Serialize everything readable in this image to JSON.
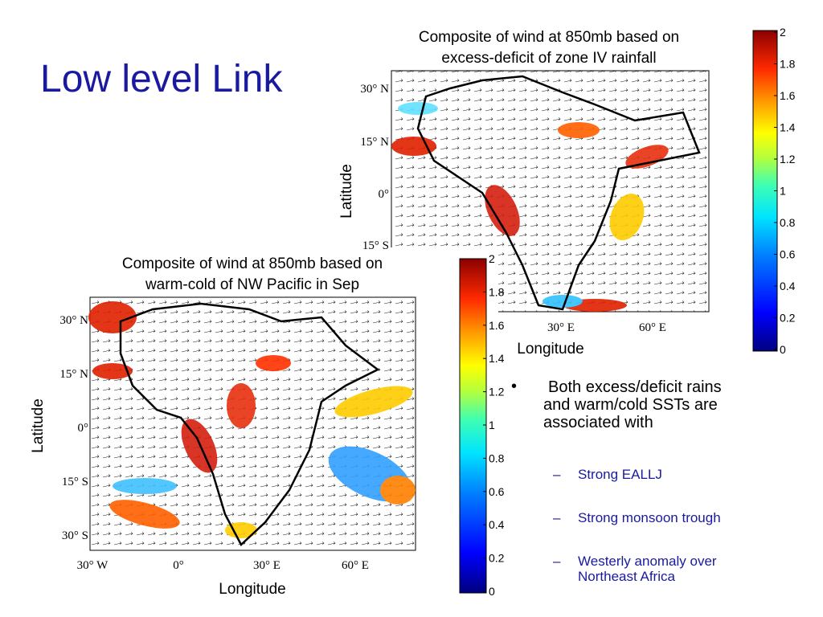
{
  "title": "Low level Link",
  "figures": [
    {
      "title_lines": [
        "Composite of wind at 850mb based on",
        "excess-deficit of zone IV rainfall"
      ],
      "ylabel": "Latitude",
      "xlabel": "Longitude",
      "lat_labels": [
        "30° N",
        "15° N",
        "0°",
        "15° S"
      ],
      "lon_labels": [
        "30° E",
        "60° E"
      ],
      "colorbar": [
        0,
        0.2,
        0.4,
        0.6,
        0.8,
        1,
        1.2,
        1.4,
        1.6,
        1.8,
        2
      ]
    },
    {
      "title_lines": [
        "Composite of wind at 850mb based on",
        "warm-cold of NW Pacific in Sep"
      ],
      "ylabel": "Latitude",
      "xlabel": "Longitude",
      "lat_labels": [
        "30° N",
        "15° N",
        "0°",
        "15° S",
        "30° S"
      ],
      "lon_labels": [
        "30° W",
        "0°",
        "30° E",
        "60° E"
      ],
      "colorbar": [
        0,
        0.2,
        0.4,
        0.6,
        0.8,
        1,
        1.2,
        1.4,
        1.6,
        1.8,
        2
      ]
    }
  ],
  "bullet": "Both excess/deficit rains and warm/cold SSTs are associated with",
  "sub_bullets": [
    "Strong EALLJ",
    "Strong monsoon trough",
    "Westerly anomaly over Northeast Africa"
  ]
}
